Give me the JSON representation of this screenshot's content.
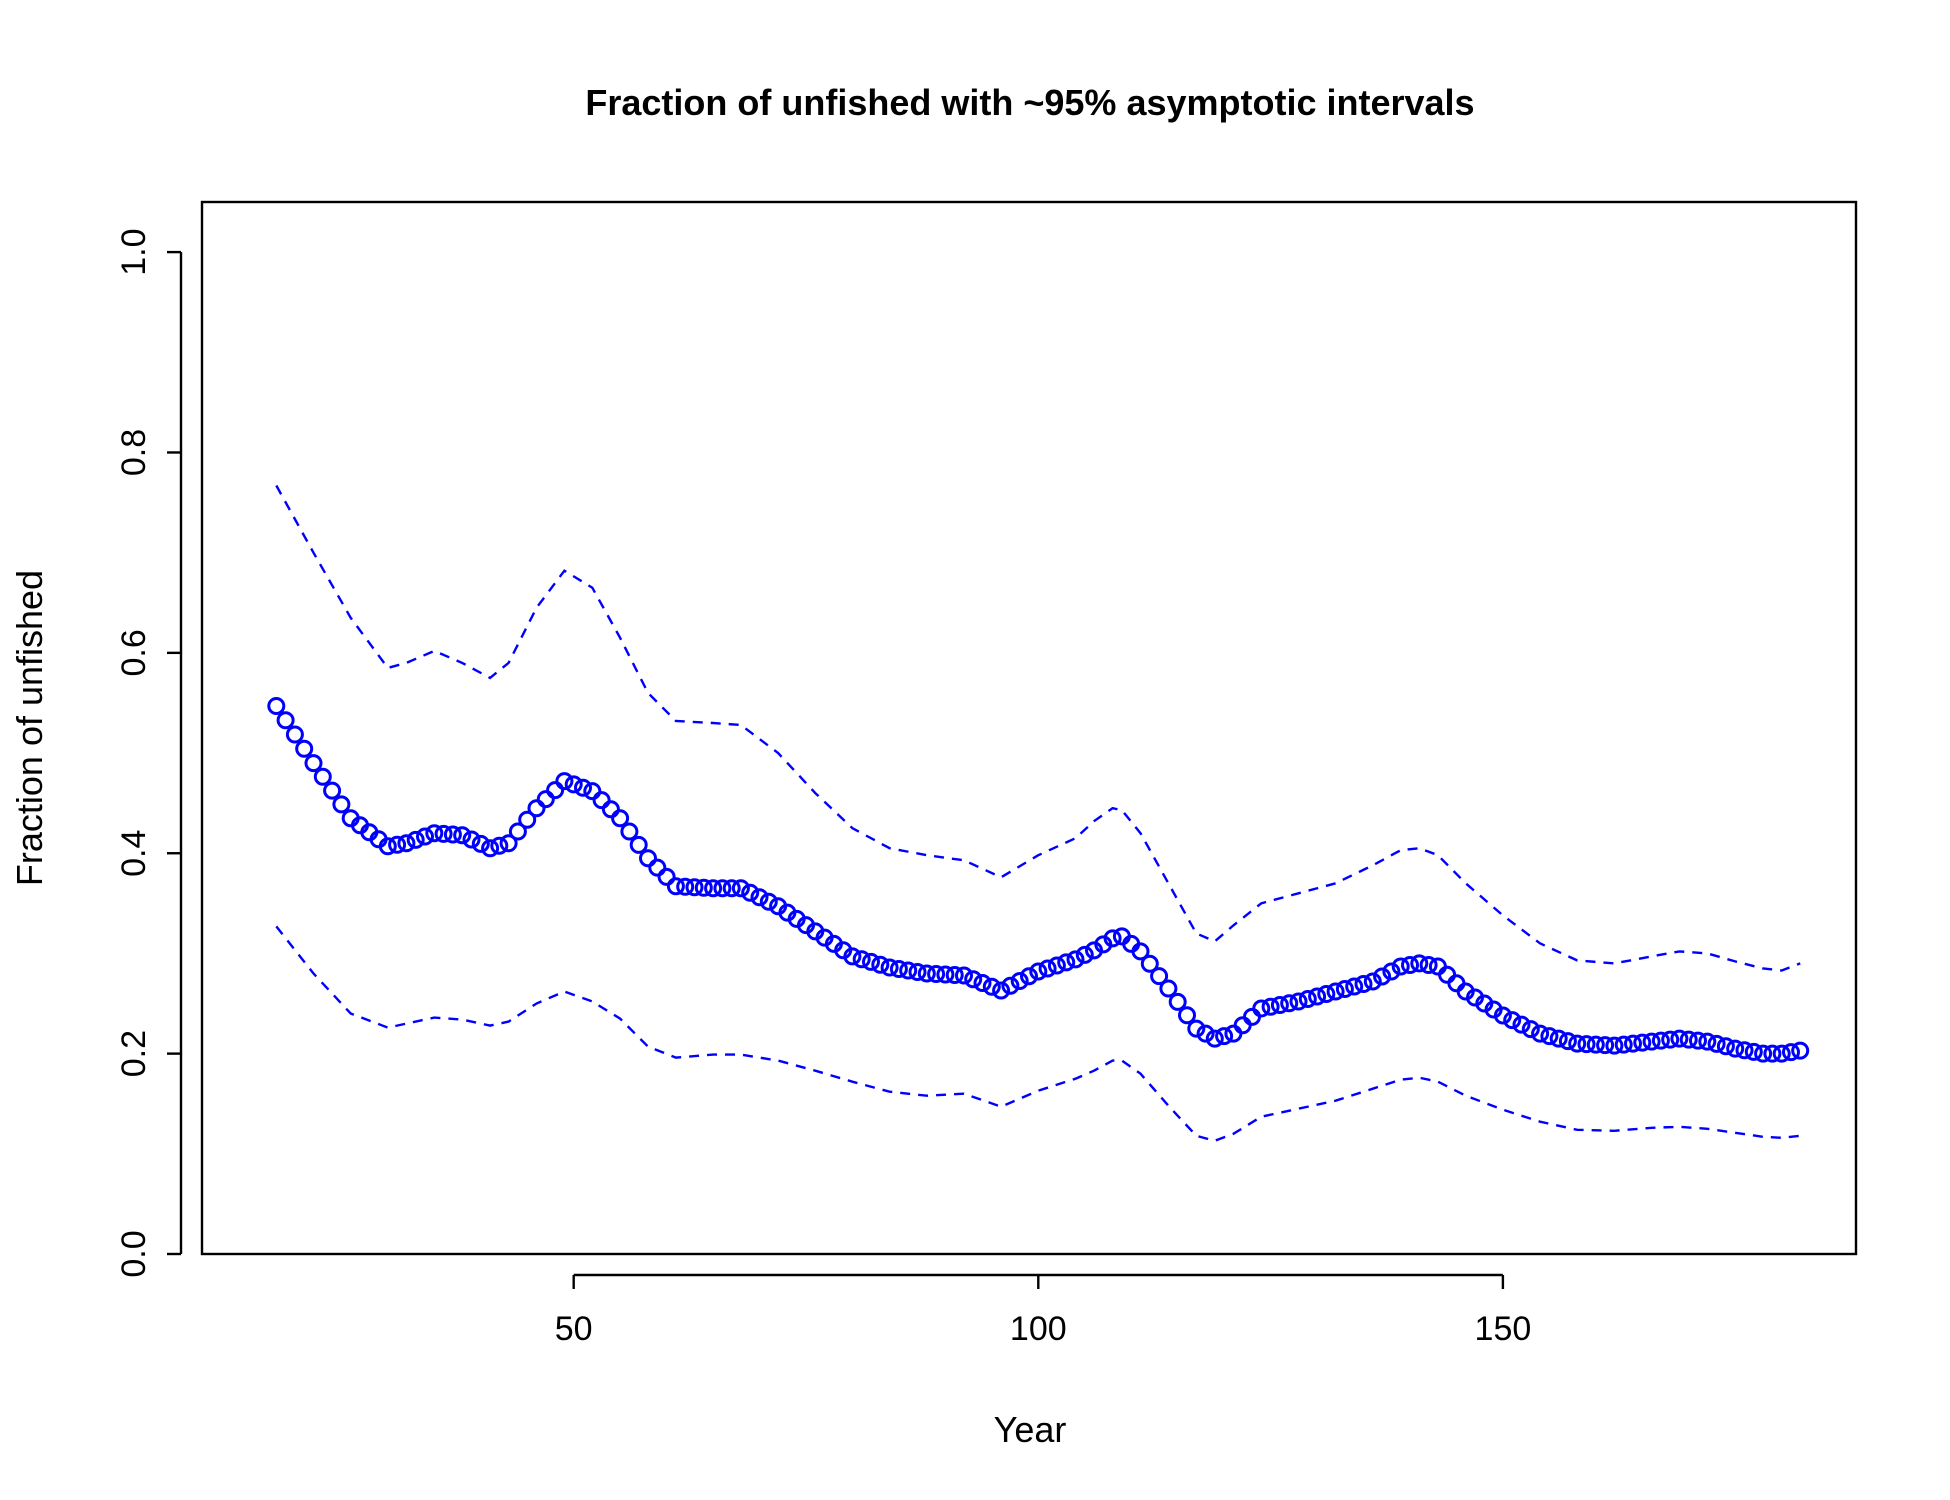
{
  "chart_data": {
    "type": "scatter",
    "title": "Fraction of unfished with ~95% asymptotic intervals",
    "xlabel": "Year",
    "ylabel": "Fraction of unfished",
    "xlim": [
      10,
      188
    ],
    "ylim": [
      0.0,
      1.05
    ],
    "xticks": [
      50,
      100,
      150
    ],
    "yticks": [
      0.0,
      0.2,
      0.4,
      0.6,
      0.8,
      1.0
    ],
    "ytick_labels": [
      "0.0",
      "0.2",
      "0.4",
      "0.6",
      "0.8",
      "1.0"
    ],
    "xtick_labels": [
      "50",
      "100",
      "150"
    ],
    "grid": false,
    "legend": "none",
    "colors": {
      "series": "#0000ff",
      "axes": "#000000",
      "background": "#ffffff"
    },
    "series": [
      {
        "role": "estimate",
        "style": "open-circles",
        "x": [
          18,
          22,
          26,
          30,
          32,
          35,
          38,
          41,
          43,
          46,
          49,
          52,
          55,
          58,
          61,
          65,
          68,
          72,
          76,
          80,
          84,
          88,
          92,
          96,
          100,
          104,
          106,
          108,
          109,
          111,
          114,
          117,
          119,
          121,
          124,
          128,
          132,
          136,
          139,
          141,
          143,
          146,
          150,
          154,
          158,
          162,
          166,
          169,
          172,
          175,
          178,
          180,
          182
        ],
        "y": [
          0.547,
          0.49,
          0.435,
          0.407,
          0.41,
          0.42,
          0.418,
          0.405,
          0.41,
          0.445,
          0.472,
          0.462,
          0.435,
          0.395,
          0.367,
          0.365,
          0.365,
          0.347,
          0.322,
          0.297,
          0.286,
          0.28,
          0.278,
          0.263,
          0.282,
          0.294,
          0.303,
          0.315,
          0.317,
          0.302,
          0.265,
          0.225,
          0.215,
          0.22,
          0.245,
          0.252,
          0.262,
          0.272,
          0.287,
          0.29,
          0.287,
          0.262,
          0.238,
          0.22,
          0.21,
          0.208,
          0.212,
          0.215,
          0.212,
          0.205,
          0.2,
          0.2,
          0.203
        ]
      },
      {
        "role": "upper 95% interval",
        "style": "dashed",
        "x": [
          18,
          22,
          26,
          30,
          32,
          35,
          38,
          41,
          43,
          46,
          49,
          52,
          55,
          58,
          61,
          65,
          68,
          72,
          76,
          80,
          84,
          88,
          92,
          96,
          100,
          104,
          106,
          108,
          109,
          111,
          114,
          117,
          119,
          121,
          124,
          128,
          132,
          136,
          139,
          141,
          143,
          146,
          150,
          154,
          158,
          162,
          166,
          169,
          172,
          175,
          178,
          180,
          182
        ],
        "y": [
          0.767,
          0.7,
          0.635,
          0.585,
          0.59,
          0.602,
          0.59,
          0.575,
          0.59,
          0.645,
          0.682,
          0.665,
          0.615,
          0.56,
          0.532,
          0.53,
          0.528,
          0.5,
          0.46,
          0.425,
          0.405,
          0.398,
          0.393,
          0.376,
          0.398,
          0.415,
          0.432,
          0.445,
          0.443,
          0.42,
          0.37,
          0.32,
          0.312,
          0.328,
          0.35,
          0.36,
          0.37,
          0.388,
          0.403,
          0.405,
          0.398,
          0.37,
          0.338,
          0.31,
          0.293,
          0.29,
          0.297,
          0.302,
          0.3,
          0.292,
          0.285,
          0.283,
          0.29
        ]
      },
      {
        "role": "lower 95% interval",
        "style": "dashed",
        "x": [
          18,
          22,
          26,
          30,
          32,
          35,
          38,
          41,
          43,
          46,
          49,
          52,
          55,
          58,
          61,
          65,
          68,
          72,
          76,
          80,
          84,
          88,
          92,
          96,
          100,
          104,
          106,
          108,
          109,
          111,
          114,
          117,
          119,
          121,
          124,
          128,
          132,
          136,
          139,
          141,
          143,
          146,
          150,
          154,
          158,
          162,
          166,
          169,
          172,
          175,
          178,
          180,
          182
        ],
        "y": [
          0.327,
          0.28,
          0.24,
          0.226,
          0.23,
          0.236,
          0.234,
          0.228,
          0.232,
          0.25,
          0.262,
          0.252,
          0.235,
          0.207,
          0.196,
          0.199,
          0.199,
          0.193,
          0.183,
          0.172,
          0.162,
          0.158,
          0.16,
          0.147,
          0.163,
          0.175,
          0.183,
          0.193,
          0.193,
          0.18,
          0.148,
          0.118,
          0.113,
          0.12,
          0.137,
          0.145,
          0.153,
          0.165,
          0.174,
          0.176,
          0.172,
          0.158,
          0.144,
          0.132,
          0.124,
          0.123,
          0.126,
          0.127,
          0.125,
          0.121,
          0.117,
          0.116,
          0.118
        ]
      }
    ]
  }
}
